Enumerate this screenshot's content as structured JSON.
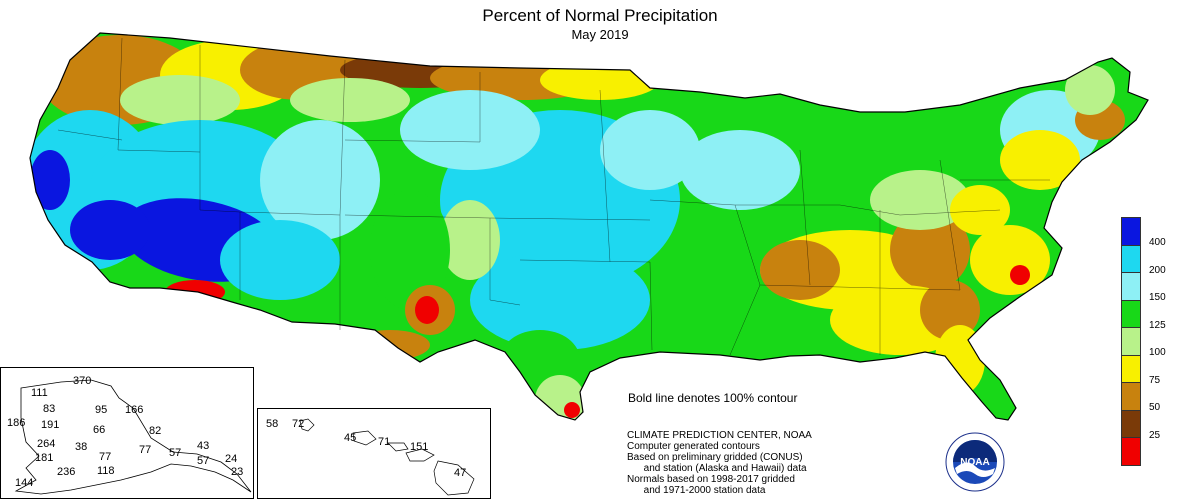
{
  "header": {
    "title": "Percent of Normal Precipitation",
    "subtitle": "May 2019"
  },
  "note": "Bold line denotes 100% contour",
  "credits": [
    "CLIMATE PREDICTION CENTER, NOAA",
    "Computer generated contours",
    "Based on preliminary gridded (CONUS)",
    "      and station (Alaska and Hawaii) data",
    "Normals based on 1998-2017 gridded",
    "      and 1971-2000 station data"
  ],
  "logo": {
    "text": "NOAA",
    "icon": "noaa-logo-icon"
  },
  "legend": {
    "items": [
      {
        "label": "400",
        "color": "#0a16e0"
      },
      {
        "label": "200",
        "color": "#1ed8f0"
      },
      {
        "label": "150",
        "color": "#8ef0f5"
      },
      {
        "label": "125",
        "color": "#18d818"
      },
      {
        "label": "100",
        "color": "#b8f28a"
      },
      {
        "label": "75",
        "color": "#f8f000"
      },
      {
        "label": "50",
        "color": "#c8820e"
      },
      {
        "label": "25",
        "color": "#7a3a08"
      },
      {
        "label": "",
        "color": "#f00000"
      }
    ]
  },
  "alaska": {
    "stations": [
      {
        "v": "370"
      },
      {
        "v": "111"
      },
      {
        "v": "83"
      },
      {
        "v": "95"
      },
      {
        "v": "166"
      },
      {
        "v": "186"
      },
      {
        "v": "191"
      },
      {
        "v": "66"
      },
      {
        "v": "82"
      },
      {
        "v": "264"
      },
      {
        "v": "38"
      },
      {
        "v": "77"
      },
      {
        "v": "57"
      },
      {
        "v": "43"
      },
      {
        "v": "181"
      },
      {
        "v": "77"
      },
      {
        "v": "57"
      },
      {
        "v": "24"
      },
      {
        "v": "236"
      },
      {
        "v": "118"
      },
      {
        "v": "23"
      },
      {
        "v": "144"
      }
    ]
  },
  "hawaii": {
    "stations": [
      {
        "v": "58"
      },
      {
        "v": "72"
      },
      {
        "v": "45"
      },
      {
        "v": "71"
      },
      {
        "v": "151"
      },
      {
        "v": "47"
      }
    ]
  }
}
